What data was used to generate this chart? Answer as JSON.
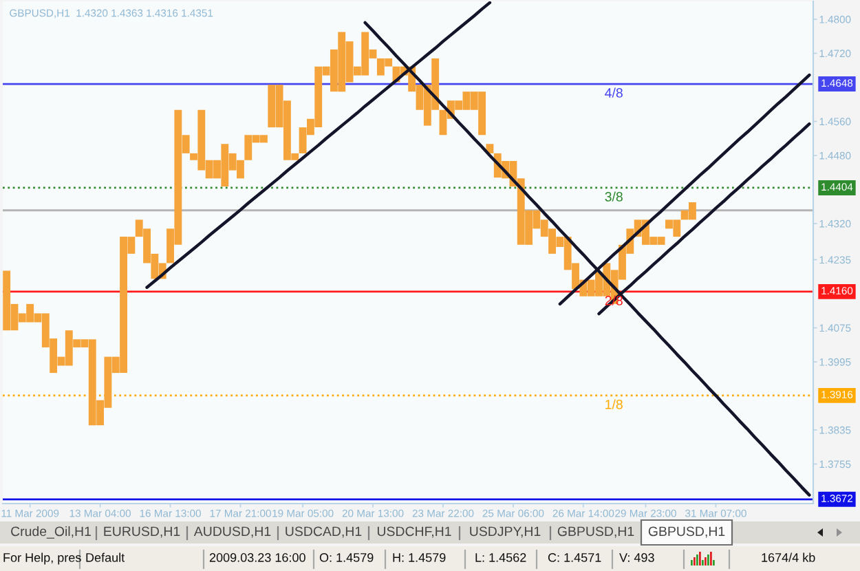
{
  "chart_data": {
    "type": "bar",
    "title": "GBPUSD,H1  1.4320 1.4363 1.4316 1.4351",
    "categories": [
      null,
      null,
      null,
      "11 Mar 2009",
      null,
      null,
      null,
      null,
      null,
      null,
      null,
      null,
      "13 Mar 04:00",
      null,
      null,
      null,
      null,
      null,
      null,
      null,
      null,
      "16 Mar 13:00",
      null,
      null,
      null,
      null,
      null,
      null,
      null,
      null,
      "17 Mar 21:00",
      null,
      null,
      null,
      null,
      null,
      null,
      null,
      "19 Mar 05:00",
      null,
      null,
      null,
      null,
      null,
      null,
      null,
      null,
      "20 Mar 13:00",
      null,
      null,
      null,
      null,
      null,
      null,
      null,
      null,
      "23 Mar 22:00",
      null,
      null,
      null,
      null,
      null,
      null,
      null,
      null,
      "25 Mar 06:00",
      null,
      null,
      null,
      null,
      null,
      null,
      null,
      null,
      "26 Mar 14:00",
      null,
      null,
      null,
      null,
      null,
      null,
      null,
      "29 Mar 23:00",
      null,
      null,
      null,
      null,
      null,
      null,
      null,
      null,
      "31 Mar 07:00",
      null,
      null,
      null,
      null,
      null,
      null,
      null,
      null,
      null,
      null,
      null,
      null
    ],
    "ylim": [
      1.3662,
      1.4842
    ],
    "yticks": [
      {
        "value": 1.48,
        "label": "1.4800"
      },
      {
        "value": 1.472,
        "label": "1.4720"
      },
      {
        "value": 1.456,
        "label": "1.4560"
      },
      {
        "value": 1.448,
        "label": "1.4480"
      },
      {
        "value": 1.432,
        "label": "1.4320"
      },
      {
        "value": 1.4235,
        "label": "1.4235"
      },
      {
        "value": 1.4075,
        "label": "1.4075"
      },
      {
        "value": 1.3995,
        "label": "1.3995"
      },
      {
        "value": 1.3835,
        "label": "1.3835"
      },
      {
        "value": 1.3755,
        "label": "1.3755"
      }
    ],
    "series": [
      {
        "color": "#f4a43a",
        "base": [
          1.4069,
          1.4069,
          1.4088,
          1.4088,
          1.4088,
          1.4029,
          1.3969,
          1.3986,
          1.3986,
          1.4029,
          1.4029,
          1.3846,
          1.3846,
          1.3887,
          1.3969,
          1.3969,
          1.4249,
          1.4289,
          1.4227,
          1.419,
          1.419,
          1.4227,
          1.427,
          1.4485,
          1.4469,
          1.4445,
          1.4426,
          1.4426,
          1.4407,
          1.4445,
          1.4426,
          1.4469,
          1.451,
          1.451,
          1.4546,
          1.4546,
          1.4469,
          1.4469,
          1.4485,
          1.4528,
          1.4546,
          1.4668,
          1.463,
          1.463,
          1.4652,
          1.4668,
          1.4668,
          1.4708,
          1.4668,
          1.4689,
          1.4652,
          1.4668,
          1.463,
          1.4587,
          1.455,
          1.4587,
          1.4528,
          1.4566,
          1.4587,
          1.4587,
          1.4587,
          1.4528,
          1.4485,
          1.4428,
          1.4426,
          1.4407,
          1.427,
          1.427,
          1.4308,
          1.4289,
          1.4249,
          1.4265,
          1.4211,
          1.4166,
          1.4149,
          1.4149,
          1.4149,
          1.4149,
          1.4131,
          1.4188,
          1.4249,
          1.4289,
          1.427,
          1.427,
          1.427,
          1.4308,
          1.4289,
          1.4329,
          1.4329,
          null,
          null,
          null,
          null,
          null,
          null,
          null,
          null,
          null,
          null,
          null,
          null,
          null,
          null,
          null
        ],
        "values": [
          0.014,
          0.0062,
          0.0021,
          0.0043,
          0.0021,
          0.008,
          0.0081,
          0.0021,
          0.0083,
          0.0019,
          0.0019,
          0.0202,
          0.0059,
          0.012,
          0.0038,
          0.032,
          0.004,
          0.004,
          0.0081,
          0.0059,
          0.0037,
          0.0081,
          0.0317,
          0.0043,
          0.0016,
          0.0142,
          0.0043,
          0.0043,
          0.01,
          0.004,
          0.0043,
          0.0059,
          0.0018,
          0.0018,
          0.01,
          0.01,
          0.014,
          0.0016,
          0.0061,
          0.0038,
          0.0143,
          0.0021,
          0.0099,
          0.014,
          0.0096,
          0.0021,
          0.0102,
          0.0021,
          0.004,
          0.0019,
          0.0037,
          0.0021,
          0.0059,
          0.0059,
          0.0096,
          0.0121,
          0.0059,
          0.0043,
          0.0022,
          0.0043,
          0.0043,
          0.0102,
          0.0022,
          0.0057,
          0.0041,
          0.006,
          0.0156,
          0.0081,
          0.0043,
          0.004,
          0.0059,
          0.0024,
          0.0078,
          0.0061,
          0.0039,
          0.0039,
          0.0057,
          0.0078,
          0.008,
          0.0082,
          0.0059,
          0.004,
          0.0059,
          0.0019,
          0.0019,
          0.0021,
          0.004,
          0.0022,
          0.0041,
          null,
          null,
          null,
          null,
          null,
          null,
          null,
          null,
          null,
          null,
          null,
          null,
          null,
          null,
          null
        ]
      },
      {
        "type": "line",
        "color": "#14142a",
        "values": [
          null,
          null,
          null,
          null,
          null,
          null,
          null,
          null,
          null,
          null,
          null,
          null,
          null,
          null,
          null,
          null,
          null,
          null,
          1.417,
          1.4185,
          1.42,
          1.4216,
          1.4231,
          1.4246,
          1.4261,
          1.4276,
          1.4292,
          1.4307,
          1.4322,
          1.4337,
          1.4352,
          1.4368,
          1.4383,
          1.4398,
          1.4413,
          1.4428,
          1.4444,
          1.4459,
          1.4474,
          1.4489,
          1.4504,
          1.452,
          1.4535,
          1.455,
          1.4565,
          1.458,
          1.4596,
          1.4611,
          1.4626,
          1.4641,
          1.4656,
          1.4672,
          1.4687,
          1.4702,
          1.4717,
          1.4732,
          1.4748,
          1.4763,
          1.4778,
          1.4793,
          1.4808,
          1.4824,
          1.4839,
          null,
          null,
          null,
          null,
          null,
          null,
          null,
          null,
          null,
          null,
          null,
          null,
          null,
          null,
          null,
          null,
          null,
          null,
          null,
          null,
          null,
          null,
          null,
          null,
          null,
          null,
          null,
          null,
          null,
          null,
          null,
          null,
          null,
          null,
          null,
          null,
          null,
          null,
          null,
          null,
          null
        ]
      },
      {
        "type": "line",
        "color": "#14142a",
        "values": [
          null,
          null,
          null,
          null,
          null,
          null,
          null,
          null,
          null,
          null,
          null,
          null,
          null,
          null,
          null,
          null,
          null,
          null,
          null,
          null,
          null,
          null,
          null,
          null,
          null,
          null,
          null,
          null,
          null,
          null,
          null,
          null,
          null,
          null,
          null,
          null,
          null,
          null,
          null,
          null,
          null,
          null,
          null,
          null,
          null,
          null,
          1.4792,
          1.4773,
          1.4753,
          1.4734,
          1.4714,
          1.4695,
          1.4675,
          1.4656,
          1.4636,
          1.4617,
          1.4597,
          1.4578,
          1.4558,
          1.4539,
          1.4519,
          1.45,
          1.448,
          1.4461,
          1.4442,
          1.4422,
          1.4403,
          1.4383,
          1.4364,
          1.4344,
          1.4325,
          1.4305,
          1.4286,
          1.4266,
          1.4247,
          1.4227,
          1.4208,
          1.4188,
          1.4169,
          1.4149,
          1.413,
          1.411,
          1.4091,
          1.4072,
          1.4052,
          1.4033,
          1.4013,
          1.3994,
          1.3974,
          1.3955,
          1.3935,
          1.3916,
          1.3896,
          1.3877,
          1.3857,
          1.3838,
          1.3818,
          1.3799,
          1.3779,
          1.376,
          1.374,
          1.3721,
          1.3701,
          1.3682
        ]
      },
      {
        "type": "line",
        "color": "#14142a",
        "values": [
          null,
          null,
          null,
          null,
          null,
          null,
          null,
          null,
          null,
          null,
          null,
          null,
          null,
          null,
          null,
          null,
          null,
          null,
          null,
          null,
          null,
          null,
          null,
          null,
          null,
          null,
          null,
          null,
          null,
          null,
          null,
          null,
          null,
          null,
          null,
          null,
          null,
          null,
          null,
          null,
          null,
          null,
          null,
          null,
          null,
          null,
          null,
          null,
          null,
          null,
          null,
          null,
          null,
          null,
          null,
          null,
          null,
          null,
          null,
          null,
          null,
          null,
          null,
          null,
          null,
          null,
          null,
          null,
          null,
          null,
          null,
          1.4131,
          1.4148,
          1.4165,
          1.4181,
          1.4198,
          1.4215,
          1.4232,
          1.4249,
          1.4265,
          1.4282,
          1.4299,
          1.4316,
          1.4333,
          1.4349,
          1.4366,
          1.4383,
          1.44,
          1.4417,
          1.4434,
          1.445,
          1.4467,
          1.4484,
          1.4501,
          1.4518,
          1.4534,
          1.4551,
          1.4568,
          1.4585,
          1.4602,
          1.4618,
          1.4635,
          1.4652,
          1.4669
        ]
      },
      {
        "type": "line",
        "color": "#14142a",
        "values": [
          null,
          null,
          null,
          null,
          null,
          null,
          null,
          null,
          null,
          null,
          null,
          null,
          null,
          null,
          null,
          null,
          null,
          null,
          null,
          null,
          null,
          null,
          null,
          null,
          null,
          null,
          null,
          null,
          null,
          null,
          null,
          null,
          null,
          null,
          null,
          null,
          null,
          null,
          null,
          null,
          null,
          null,
          null,
          null,
          null,
          null,
          null,
          null,
          null,
          null,
          null,
          null,
          null,
          null,
          null,
          null,
          null,
          null,
          null,
          null,
          null,
          null,
          null,
          null,
          null,
          null,
          null,
          null,
          null,
          null,
          null,
          null,
          null,
          null,
          null,
          null,
          1.4108,
          1.4125,
          1.4141,
          1.4158,
          1.4174,
          1.4191,
          1.4207,
          1.4224,
          1.424,
          1.4257,
          1.4273,
          1.429,
          1.4306,
          1.4323,
          1.4339,
          1.4356,
          1.4372,
          1.4389,
          1.4405,
          1.4422,
          1.4438,
          1.4455,
          1.4471,
          1.4488,
          1.4504,
          1.4521,
          1.4537,
          1.4554
        ]
      }
    ],
    "ref_lines": [
      {
        "axis": "y",
        "value": 1.4648,
        "label": "1.4648",
        "color": "#4646f0",
        "line_style": "solid"
      },
      {
        "axis": "y",
        "value": 1.4404,
        "label": "1.4404",
        "color": "#2e8b2e",
        "line_style": "dotted"
      },
      {
        "axis": "y",
        "value": 1.4351,
        "color": "#b4b4b4",
        "line_style": "solid"
      },
      {
        "axis": "y",
        "value": 1.416,
        "label": "1.4160",
        "color": "#ff1a1a",
        "line_style": "solid"
      },
      {
        "axis": "y",
        "value": 1.3916,
        "label": "1.3916",
        "color": "#ffaa00",
        "line_style": "dotted"
      },
      {
        "axis": "y",
        "value": 1.3672,
        "label": "1.3672",
        "color": "#1010e8",
        "line_style": "solid"
      }
    ],
    "annotations": [
      {
        "text": "4/8",
        "y": 1.4648
      },
      {
        "text": "3/8",
        "y": 1.4404
      },
      {
        "text": "2/8",
        "y": 1.416
      },
      {
        "text": "1/8",
        "y": 1.3916
      },
      "Crude_Oil,H1",
      "EURUSD,H1",
      "AUDUSD,H1",
      "USDCAD,H1",
      "USDCHF,H1",
      "USDJPY,H1",
      "GBPUSD,H1",
      "GBPUSD,H1",
      "For Help, pres",
      "Default",
      "2009.03.23 16:00",
      "O: 1.4579",
      "H: 1.4579",
      "L: 1.4562",
      "C: 1.4571",
      "V: 493",
      "1674/4 kb"
    ]
  }
}
